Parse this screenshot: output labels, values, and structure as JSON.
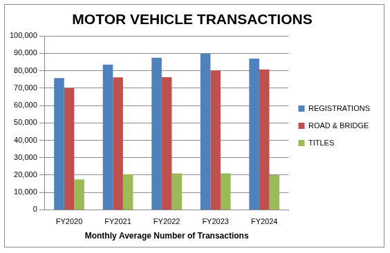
{
  "chart_data": {
    "type": "bar",
    "title": "MOTOR VEHICLE TRANSACTIONS",
    "x_label": "Monthly Average Number of Transactions",
    "categories": [
      "FY2020",
      "FY2021",
      "FY2022",
      "FY2023",
      "FY2024"
    ],
    "series": [
      {
        "name": "REGISTRATIONS",
        "color": "#4f81bd",
        "values": [
          75800,
          83500,
          87500,
          89800,
          87000
        ]
      },
      {
        "name": "ROAD & BRIDGE",
        "color": "#c0504d",
        "values": [
          70000,
          76200,
          76300,
          80200,
          80700
        ]
      },
      {
        "name": "TITLES",
        "color": "#9bbb59",
        "values": [
          17500,
          20500,
          21000,
          21000,
          20000
        ]
      }
    ],
    "ylim": [
      0,
      100000
    ],
    "yticks": [
      0,
      {
        "value": 10000,
        "label": "10,000"
      },
      {
        "value": 20000,
        "label": "20,000"
      },
      {
        "value": 30000,
        "label": "30,000"
      },
      {
        "value": 40000,
        "label": "40,000"
      },
      {
        "value": 50000,
        "label": "50,000"
      },
      {
        "value": 60000,
        "label": "60,000"
      },
      {
        "value": 70000,
        "label": "70,000"
      },
      {
        "value": 80000,
        "label": "80,000"
      },
      {
        "value": 90000,
        "label": "90,000"
      },
      {
        "value": 100000,
        "label": "100,000"
      }
    ],
    "grid": true,
    "legend": "right"
  }
}
